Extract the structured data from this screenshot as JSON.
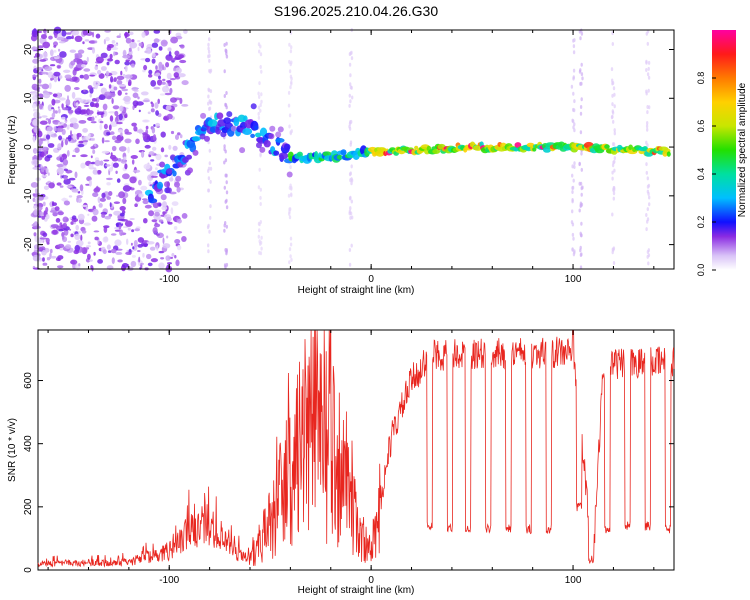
{
  "title": "S196.2025.210.04.26.G30",
  "chart_data": [
    {
      "type": "heatmap",
      "xlabel": "Height of straight line (km)",
      "ylabel": "Frequency (Hz)",
      "xlim": [
        -165,
        150
      ],
      "ylim": [
        -25,
        24
      ],
      "x_ticks": [
        -100,
        0,
        100
      ],
      "y_ticks": [
        -20,
        -10,
        0,
        10,
        20
      ],
      "colorbar": {
        "label": "Normalized spectral amplitude",
        "range": [
          0,
          1
        ],
        "ticks": [
          0.0,
          0.2,
          0.4,
          0.6,
          0.8
        ]
      },
      "ridge": {
        "description_points": [
          {
            "x": -100,
            "y": -5
          },
          {
            "x": -80,
            "y": 5
          },
          {
            "x": -60,
            "y": 4
          },
          {
            "x": -40,
            "y": -2
          },
          {
            "x": -20,
            "y": -2
          },
          {
            "x": 0,
            "y": -1
          },
          {
            "x": 50,
            "y": 0
          },
          {
            "x": 100,
            "y": 0
          },
          {
            "x": 150,
            "y": -1
          }
        ]
      }
    },
    {
      "type": "line",
      "xlabel": "Height of straight line (km)",
      "ylabel": "SNR (10 * v/v)",
      "xlim": [
        -165,
        150
      ],
      "ylim": [
        0,
        760
      ],
      "x_ticks": [
        -100,
        0,
        100
      ],
      "y_ticks": [
        0,
        200,
        400,
        600
      ],
      "color": "#e8261f",
      "envelope_points": [
        {
          "x": -165,
          "y": 20
        },
        {
          "x": -120,
          "y": 25
        },
        {
          "x": -100,
          "y": 60
        },
        {
          "x": -90,
          "y": 120
        },
        {
          "x": -80,
          "y": 150
        },
        {
          "x": -70,
          "y": 70
        },
        {
          "x": -60,
          "y": 30
        },
        {
          "x": -50,
          "y": 150
        },
        {
          "x": -40,
          "y": 300
        },
        {
          "x": -30,
          "y": 450
        },
        {
          "x": -20,
          "y": 400
        },
        {
          "x": -10,
          "y": 200
        },
        {
          "x": 0,
          "y": 40
        },
        {
          "x": 10,
          "y": 420
        },
        {
          "x": 20,
          "y": 600
        },
        {
          "x": 30,
          "y": 680
        },
        {
          "x": 100,
          "y": 690
        },
        {
          "x": 110,
          "y": 30
        },
        {
          "x": 115,
          "y": 650
        },
        {
          "x": 150,
          "y": 660
        }
      ],
      "dips": [
        {
          "x": 29,
          "y": 140
        },
        {
          "x": 39,
          "y": 130
        },
        {
          "x": 48,
          "y": 130
        },
        {
          "x": 58,
          "y": 130
        },
        {
          "x": 68,
          "y": 130
        },
        {
          "x": 78,
          "y": 130
        },
        {
          "x": 88,
          "y": 130
        },
        {
          "x": 103,
          "y": 200
        },
        {
          "x": 109,
          "y": 30
        },
        {
          "x": 117,
          "y": 130
        },
        {
          "x": 127,
          "y": 140
        },
        {
          "x": 137,
          "y": 140
        },
        {
          "x": 147,
          "y": 130
        }
      ]
    }
  ]
}
